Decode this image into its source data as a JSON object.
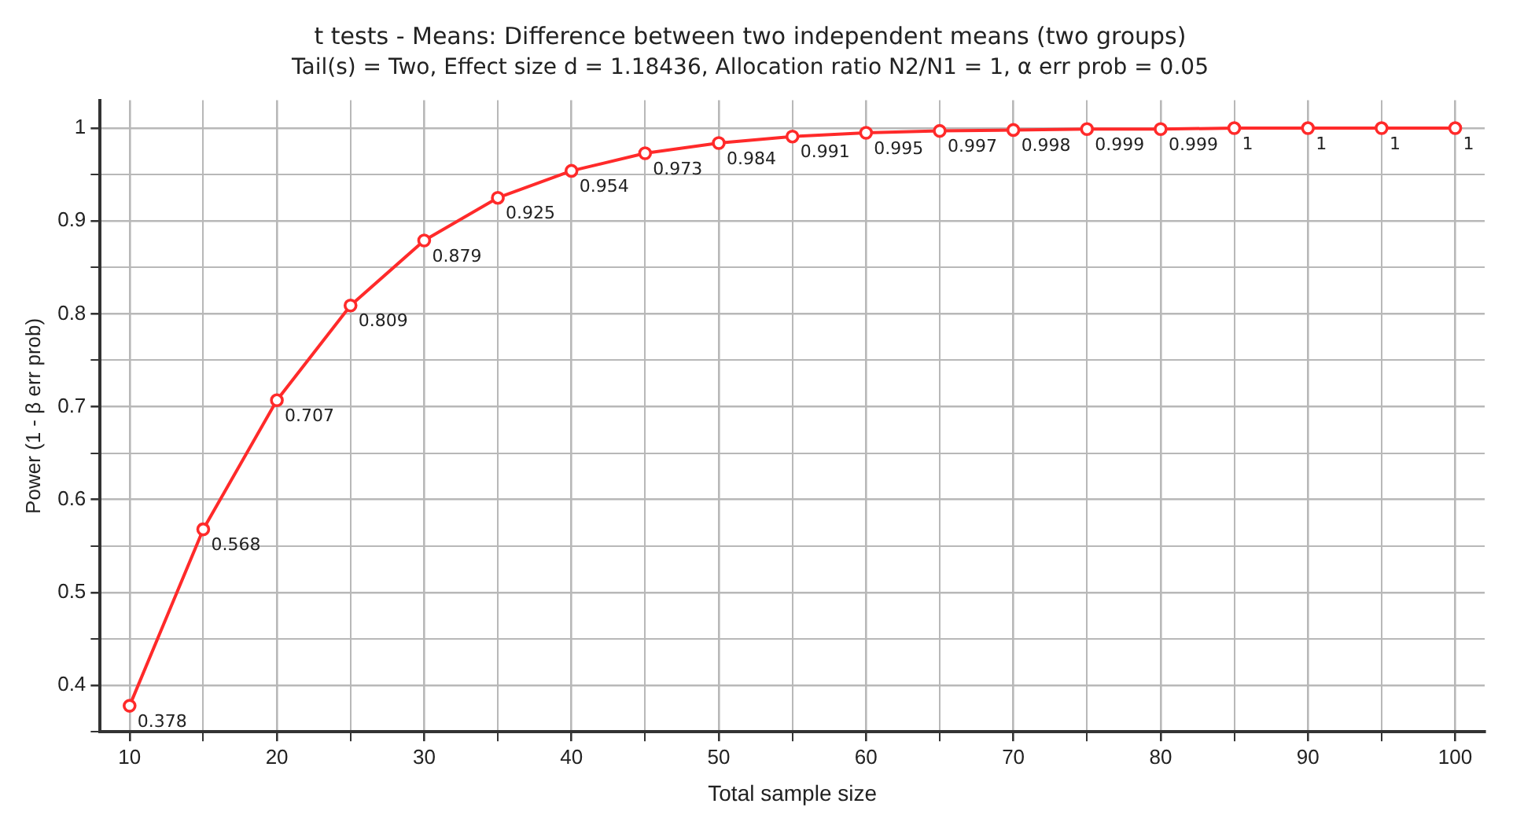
{
  "chart_data": {
    "type": "line",
    "title": "t tests - Means: Difference between two independent means (two groups)",
    "subtitle": "Tail(s) = Two, Effect size d = 1.18436, Allocation ratio N2/N1 = 1, α err prob = 0.05",
    "xlabel": "Total sample size",
    "ylabel": "Power (1 - β err prob)",
    "x": [
      10,
      15,
      20,
      25,
      30,
      35,
      40,
      45,
      50,
      55,
      60,
      65,
      70,
      75,
      80,
      85,
      90,
      95,
      100
    ],
    "series": [
      {
        "color": "#ff2a2a",
        "values": [
          0.378,
          0.568,
          0.707,
          0.809,
          0.879,
          0.925,
          0.954,
          0.973,
          0.984,
          0.991,
          0.995,
          0.997,
          0.998,
          0.999,
          0.999,
          1,
          1,
          1,
          1
        ]
      }
    ],
    "xlim": [
      8,
      102
    ],
    "ylim": [
      0.35,
      1.03
    ],
    "xticks": [
      10,
      {
        "value": 15,
        "label": null
      },
      20,
      {
        "value": 25,
        "label": null
      },
      30,
      {
        "value": 35,
        "label": null
      },
      40,
      {
        "value": 45,
        "label": null
      },
      50,
      {
        "value": 55,
        "label": null
      },
      60,
      {
        "value": 65,
        "label": null
      },
      70,
      {
        "value": 75,
        "label": null
      },
      80,
      {
        "value": 85,
        "label": null
      },
      90,
      {
        "value": 95,
        "label": null
      },
      100
    ],
    "yticks": [
      {
        "value": 0.35,
        "label": null
      },
      0.4,
      {
        "value": 0.45,
        "label": null
      },
      0.5,
      {
        "value": 0.55,
        "label": null
      },
      0.6,
      {
        "value": 0.65,
        "label": null
      },
      0.7,
      {
        "value": 0.75,
        "label": null
      },
      0.8,
      {
        "value": 0.85,
        "label": null
      },
      0.9,
      {
        "value": 0.95,
        "label": null
      },
      1
    ],
    "grid": true,
    "legend": false,
    "marker": "circle",
    "line_style": "solid",
    "data_labels": true
  }
}
